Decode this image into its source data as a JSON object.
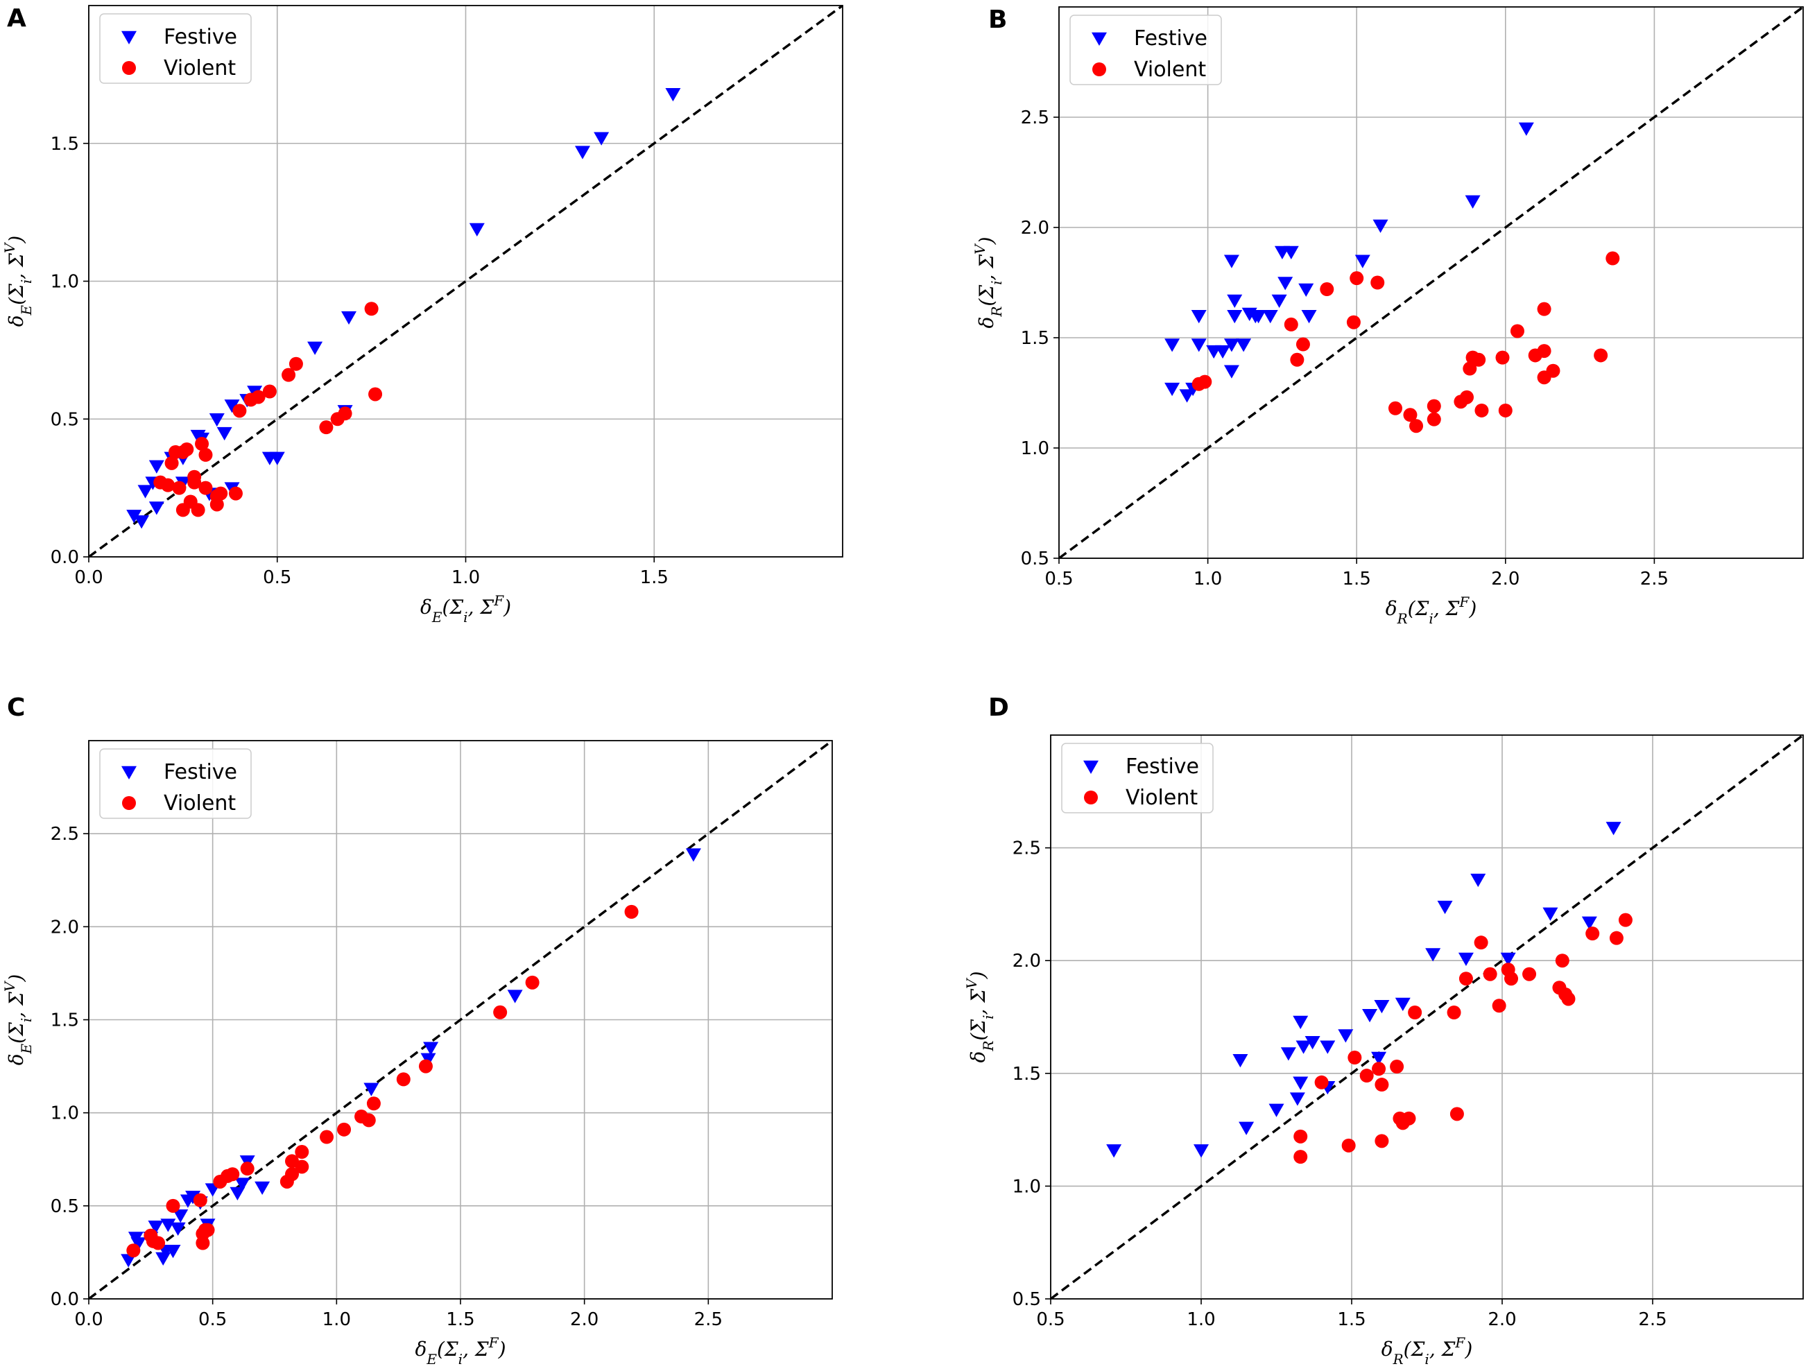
{
  "colors": {
    "festive": "#0000ff",
    "violent": "#ff0000",
    "grid": "#b0b0b0",
    "diagonal": "#000000"
  },
  "chart_data": [
    {
      "type": "scatter",
      "panel": "A",
      "xlabel": "δE(Σi, ΣF)",
      "ylabel": "δE(Σi, ΣV)",
      "xlim": [
        0,
        2.0
      ],
      "ylim": [
        0,
        2.0
      ],
      "xticks": [
        0.0,
        0.5,
        1.0,
        1.5
      ],
      "yticks": [
        0.0,
        0.5,
        1.0,
        1.5
      ],
      "xtick_labels": [
        "0.0",
        "0.5",
        "1.0",
        "1.5"
      ],
      "ytick_labels": [
        "0.0",
        "0.5",
        "1.0",
        "1.5"
      ],
      "legend": [
        "Festive",
        "Violent"
      ],
      "legend_position": "top-left",
      "reference_line": "y = x (dashed)",
      "series": [
        {
          "name": "Festive",
          "marker": "triangle-down",
          "points": [
            [
              0.12,
              0.15
            ],
            [
              0.14,
              0.13
            ],
            [
              0.15,
              0.24
            ],
            [
              0.17,
              0.27
            ],
            [
              0.18,
              0.18
            ],
            [
              0.18,
              0.33
            ],
            [
              0.22,
              0.36
            ],
            [
              0.25,
              0.27
            ],
            [
              0.25,
              0.36
            ],
            [
              0.29,
              0.44
            ],
            [
              0.3,
              0.43
            ],
            [
              0.32,
              0.23
            ],
            [
              0.34,
              0.5
            ],
            [
              0.36,
              0.45
            ],
            [
              0.38,
              0.25
            ],
            [
              0.38,
              0.55
            ],
            [
              0.42,
              0.57
            ],
            [
              0.44,
              0.6
            ],
            [
              0.48,
              0.36
            ],
            [
              0.5,
              0.36
            ],
            [
              0.6,
              0.76
            ],
            [
              0.68,
              0.53
            ],
            [
              0.69,
              0.87
            ],
            [
              1.03,
              1.19
            ],
            [
              1.31,
              1.47
            ],
            [
              1.36,
              1.52
            ],
            [
              1.55,
              1.68
            ]
          ]
        },
        {
          "name": "Violent",
          "marker": "circle",
          "points": [
            [
              0.19,
              0.27
            ],
            [
              0.21,
              0.26
            ],
            [
              0.22,
              0.34
            ],
            [
              0.23,
              0.38
            ],
            [
              0.24,
              0.25
            ],
            [
              0.25,
              0.17
            ],
            [
              0.25,
              0.38
            ],
            [
              0.26,
              0.39
            ],
            [
              0.27,
              0.2
            ],
            [
              0.28,
              0.27
            ],
            [
              0.28,
              0.29
            ],
            [
              0.29,
              0.17
            ],
            [
              0.3,
              0.41
            ],
            [
              0.31,
              0.25
            ],
            [
              0.31,
              0.37
            ],
            [
              0.34,
              0.19
            ],
            [
              0.34,
              0.22
            ],
            [
              0.35,
              0.23
            ],
            [
              0.39,
              0.23
            ],
            [
              0.4,
              0.53
            ],
            [
              0.43,
              0.57
            ],
            [
              0.45,
              0.58
            ],
            [
              0.48,
              0.6
            ],
            [
              0.53,
              0.66
            ],
            [
              0.55,
              0.7
            ],
            [
              0.63,
              0.47
            ],
            [
              0.66,
              0.5
            ],
            [
              0.68,
              0.52
            ],
            [
              0.75,
              0.9
            ],
            [
              0.76,
              0.59
            ]
          ]
        }
      ]
    },
    {
      "type": "scatter",
      "panel": "B",
      "xlabel": "δR(Σi, ΣF)",
      "ylabel": "δR(Σi, ΣV)",
      "xlim": [
        0.5,
        3.0
      ],
      "ylim": [
        0.5,
        3.0
      ],
      "xticks": [
        0.5,
        1.0,
        1.5,
        2.0,
        2.5
      ],
      "yticks": [
        0.5,
        1.0,
        1.5,
        2.0,
        2.5
      ],
      "xtick_labels": [
        "0.5",
        "1.0",
        "1.5",
        "2.0",
        "2.5"
      ],
      "ytick_labels": [
        "0.5",
        "1.0",
        "1.5",
        "2.0",
        "2.5"
      ],
      "legend": [
        "Festive",
        "Violent"
      ],
      "legend_position": "top-left",
      "reference_line": "y = x (dashed)",
      "series": [
        {
          "name": "Festive",
          "marker": "triangle-down",
          "points": [
            [
              0.88,
              1.47
            ],
            [
              0.88,
              1.27
            ],
            [
              0.93,
              1.24
            ],
            [
              0.95,
              1.27
            ],
            [
              0.97,
              1.6
            ],
            [
              0.97,
              1.47
            ],
            [
              1.02,
              1.44
            ],
            [
              1.05,
              1.44
            ],
            [
              1.08,
              1.35
            ],
            [
              1.08,
              1.47
            ],
            [
              1.08,
              1.85
            ],
            [
              1.09,
              1.67
            ],
            [
              1.09,
              1.6
            ],
            [
              1.12,
              1.47
            ],
            [
              1.14,
              1.61
            ],
            [
              1.16,
              1.6
            ],
            [
              1.17,
              1.6
            ],
            [
              1.21,
              1.6
            ],
            [
              1.24,
              1.67
            ],
            [
              1.25,
              1.89
            ],
            [
              1.26,
              1.75
            ],
            [
              1.28,
              1.89
            ],
            [
              1.33,
              1.72
            ],
            [
              1.34,
              1.6
            ],
            [
              1.52,
              1.85
            ],
            [
              1.58,
              2.01
            ],
            [
              1.89,
              2.12
            ],
            [
              2.07,
              2.45
            ]
          ]
        },
        {
          "name": "Violent",
          "marker": "circle",
          "points": [
            [
              0.97,
              1.29
            ],
            [
              0.99,
              1.3
            ],
            [
              1.28,
              1.56
            ],
            [
              1.3,
              1.4
            ],
            [
              1.32,
              1.47
            ],
            [
              1.4,
              1.72
            ],
            [
              1.49,
              1.57
            ],
            [
              1.5,
              1.77
            ],
            [
              1.57,
              1.75
            ],
            [
              1.63,
              1.18
            ],
            [
              1.68,
              1.15
            ],
            [
              1.7,
              1.1
            ],
            [
              1.76,
              1.13
            ],
            [
              1.76,
              1.19
            ],
            [
              1.85,
              1.21
            ],
            [
              1.87,
              1.23
            ],
            [
              1.88,
              1.36
            ],
            [
              1.89,
              1.41
            ],
            [
              1.91,
              1.4
            ],
            [
              1.92,
              1.17
            ],
            [
              1.99,
              1.41
            ],
            [
              2.0,
              1.17
            ],
            [
              2.04,
              1.53
            ],
            [
              2.1,
              1.42
            ],
            [
              2.13,
              1.44
            ],
            [
              2.13,
              1.63
            ],
            [
              2.13,
              1.32
            ],
            [
              2.16,
              1.35
            ],
            [
              2.32,
              1.42
            ],
            [
              2.36,
              1.86
            ]
          ]
        }
      ]
    },
    {
      "type": "scatter",
      "panel": "C",
      "xlabel": "δE(Σi, ΣF)",
      "ylabel": "δE(Σi, ΣV)",
      "xlim": [
        0,
        3.0
      ],
      "ylim": [
        0,
        3.0
      ],
      "xticks": [
        0.0,
        0.5,
        1.0,
        1.5,
        2.0,
        2.5
      ],
      "yticks": [
        0.0,
        0.5,
        1.0,
        1.5,
        2.0,
        2.5
      ],
      "xtick_labels": [
        "0.0",
        "0.5",
        "1.0",
        "1.5",
        "2.0",
        "2.5"
      ],
      "ytick_labels": [
        "0.0",
        "0.5",
        "1.0",
        "1.5",
        "2.0",
        "2.5"
      ],
      "legend": [
        "Festive",
        "Violent"
      ],
      "legend_position": "top-left",
      "reference_line": "y = x (dashed)",
      "series": [
        {
          "name": "Festive",
          "marker": "triangle-down",
          "points": [
            [
              0.16,
              0.21
            ],
            [
              0.19,
              0.33
            ],
            [
              0.2,
              0.3
            ],
            [
              0.25,
              0.33
            ],
            [
              0.27,
              0.39
            ],
            [
              0.3,
              0.22
            ],
            [
              0.31,
              0.26
            ],
            [
              0.32,
              0.4
            ],
            [
              0.34,
              0.26
            ],
            [
              0.36,
              0.38
            ],
            [
              0.37,
              0.45
            ],
            [
              0.4,
              0.53
            ],
            [
              0.42,
              0.55
            ],
            [
              0.45,
              0.52
            ],
            [
              0.48,
              0.4
            ],
            [
              0.5,
              0.59
            ],
            [
              0.6,
              0.57
            ],
            [
              0.62,
              0.62
            ],
            [
              0.64,
              0.74
            ],
            [
              0.7,
              0.6
            ],
            [
              1.14,
              1.13
            ],
            [
              1.37,
              1.29
            ],
            [
              1.38,
              1.35
            ],
            [
              1.72,
              1.63
            ],
            [
              2.44,
              2.39
            ]
          ]
        },
        {
          "name": "Violent",
          "marker": "circle",
          "points": [
            [
              0.18,
              0.26
            ],
            [
              0.25,
              0.34
            ],
            [
              0.26,
              0.31
            ],
            [
              0.28,
              0.3
            ],
            [
              0.34,
              0.5
            ],
            [
              0.45,
              0.53
            ],
            [
              0.46,
              0.3
            ],
            [
              0.46,
              0.35
            ],
            [
              0.47,
              0.37
            ],
            [
              0.48,
              0.37
            ],
            [
              0.53,
              0.63
            ],
            [
              0.56,
              0.66
            ],
            [
              0.58,
              0.67
            ],
            [
              0.64,
              0.7
            ],
            [
              0.8,
              0.63
            ],
            [
              0.82,
              0.67
            ],
            [
              0.82,
              0.74
            ],
            [
              0.86,
              0.71
            ],
            [
              0.86,
              0.79
            ],
            [
              0.96,
              0.87
            ],
            [
              1.03,
              0.91
            ],
            [
              1.1,
              0.98
            ],
            [
              1.13,
              0.96
            ],
            [
              1.15,
              1.05
            ],
            [
              1.27,
              1.18
            ],
            [
              1.36,
              1.25
            ],
            [
              1.66,
              1.54
            ],
            [
              1.79,
              1.7
            ],
            [
              2.19,
              2.08
            ]
          ]
        }
      ]
    },
    {
      "type": "scatter",
      "panel": "D",
      "xlabel": "δR(Σi, ΣF)",
      "ylabel": "δR(Σi, ΣV)",
      "xlim": [
        0.5,
        3.0
      ],
      "ylim": [
        0.5,
        3.0
      ],
      "xticks": [
        0.5,
        1.0,
        1.5,
        2.0,
        2.5
      ],
      "yticks": [
        0.5,
        1.0,
        1.5,
        2.0,
        2.5
      ],
      "xtick_labels": [
        "0.5",
        "1.0",
        "1.5",
        "2.0",
        "2.5"
      ],
      "ytick_labels": [
        "0.5",
        "1.0",
        "1.5",
        "2.0",
        "2.5"
      ],
      "legend": [
        "Festive",
        "Violent"
      ],
      "legend_position": "top-left",
      "reference_line": "y = x (dashed)",
      "series": [
        {
          "name": "Festive",
          "marker": "triangle-down",
          "points": [
            [
              0.71,
              1.16
            ],
            [
              1.0,
              1.16
            ],
            [
              1.13,
              1.56
            ],
            [
              1.15,
              1.26
            ],
            [
              1.25,
              1.34
            ],
            [
              1.29,
              1.59
            ],
            [
              1.32,
              1.39
            ],
            [
              1.33,
              1.46
            ],
            [
              1.33,
              1.73
            ],
            [
              1.34,
              1.62
            ],
            [
              1.37,
              1.64
            ],
            [
              1.42,
              1.62
            ],
            [
              1.42,
              1.44
            ],
            [
              1.48,
              1.67
            ],
            [
              1.56,
              1.76
            ],
            [
              1.59,
              1.57
            ],
            [
              1.6,
              1.8
            ],
            [
              1.67,
              1.81
            ],
            [
              1.77,
              2.03
            ],
            [
              1.81,
              2.24
            ],
            [
              1.88,
              2.01
            ],
            [
              1.92,
              2.36
            ],
            [
              2.02,
              2.01
            ],
            [
              2.16,
              2.21
            ],
            [
              2.29,
              2.17
            ],
            [
              2.37,
              2.59
            ]
          ]
        },
        {
          "name": "Violent",
          "marker": "circle",
          "points": [
            [
              1.33,
              1.13
            ],
            [
              1.33,
              1.22
            ],
            [
              1.4,
              1.46
            ],
            [
              1.49,
              1.18
            ],
            [
              1.51,
              1.57
            ],
            [
              1.55,
              1.49
            ],
            [
              1.59,
              1.52
            ],
            [
              1.6,
              1.45
            ],
            [
              1.6,
              1.2
            ],
            [
              1.65,
              1.53
            ],
            [
              1.66,
              1.3
            ],
            [
              1.67,
              1.28
            ],
            [
              1.69,
              1.3
            ],
            [
              1.71,
              1.77
            ],
            [
              1.84,
              1.77
            ],
            [
              1.85,
              1.32
            ],
            [
              1.88,
              1.92
            ],
            [
              1.93,
              2.08
            ],
            [
              1.96,
              1.94
            ],
            [
              1.99,
              1.8
            ],
            [
              2.02,
              1.96
            ],
            [
              2.03,
              1.92
            ],
            [
              2.09,
              1.94
            ],
            [
              2.19,
              1.88
            ],
            [
              2.2,
              2.0
            ],
            [
              2.21,
              1.85
            ],
            [
              2.22,
              1.83
            ],
            [
              2.3,
              2.12
            ],
            [
              2.38,
              2.1
            ],
            [
              2.41,
              2.18
            ]
          ]
        }
      ]
    }
  ]
}
